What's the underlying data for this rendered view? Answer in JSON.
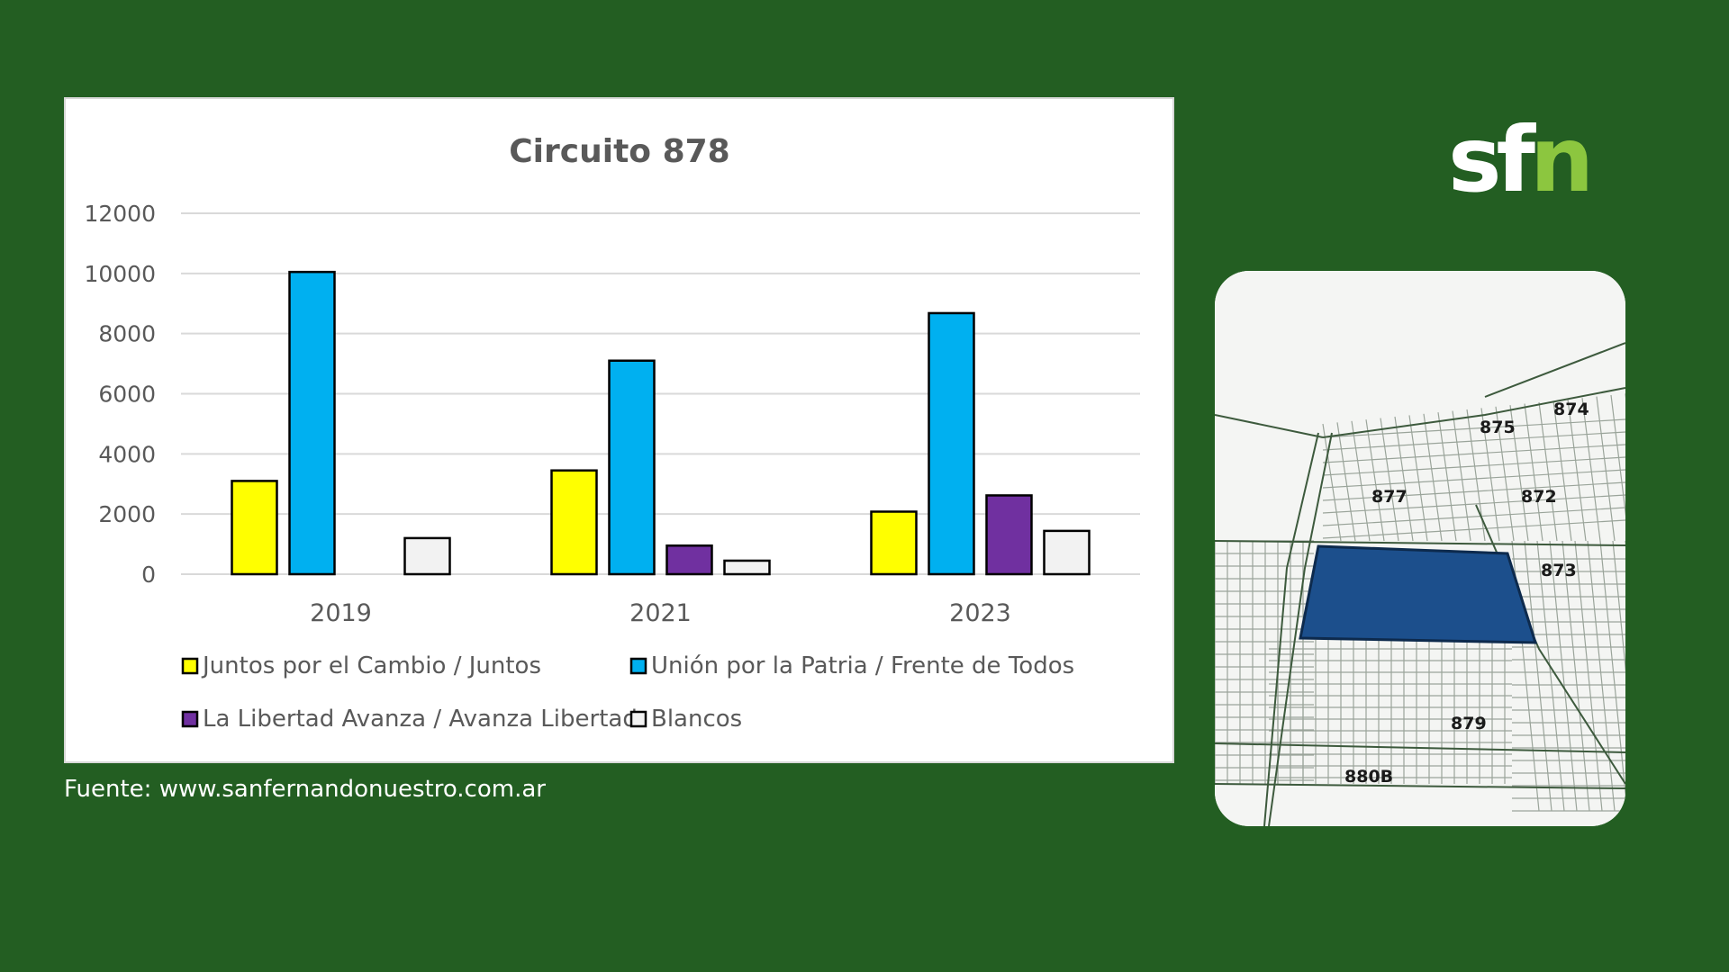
{
  "source": "Fuente: www.sanfernandonuestro.com.ar",
  "logo": {
    "part_white": "sf",
    "part_green": "n",
    "color_green": "#8cc63f"
  },
  "map": {
    "labels": [
      "874",
      "875",
      "877",
      "872",
      "873",
      "879",
      "880B"
    ],
    "highlight_color": "#1c4f8c"
  },
  "chart_data": {
    "type": "bar",
    "title": "Circuito 878",
    "categories": [
      "2019",
      "2021",
      "2023"
    ],
    "ylim": [
      0,
      12000
    ],
    "yticks": [
      "0",
      "2000",
      "4000",
      "6000",
      "8000",
      "10000",
      "12000"
    ],
    "grid": true,
    "legend_position": "bottom",
    "series": [
      {
        "name": "Juntos por el Cambio / Juntos",
        "color": "#ffff00",
        "values": [
          3100,
          3450,
          2080
        ]
      },
      {
        "name": "Unión por la Patria / Frente de Todos",
        "color": "#00b0f0",
        "values": [
          10050,
          7100,
          8680
        ]
      },
      {
        "name": "La Libertad Avanza / Avanza Libertad",
        "color": "#7030a0",
        "values": [
          0,
          950,
          2620
        ]
      },
      {
        "name": "Blancos",
        "color": "#f2f2f2",
        "values": [
          1200,
          450,
          1440
        ]
      }
    ]
  }
}
